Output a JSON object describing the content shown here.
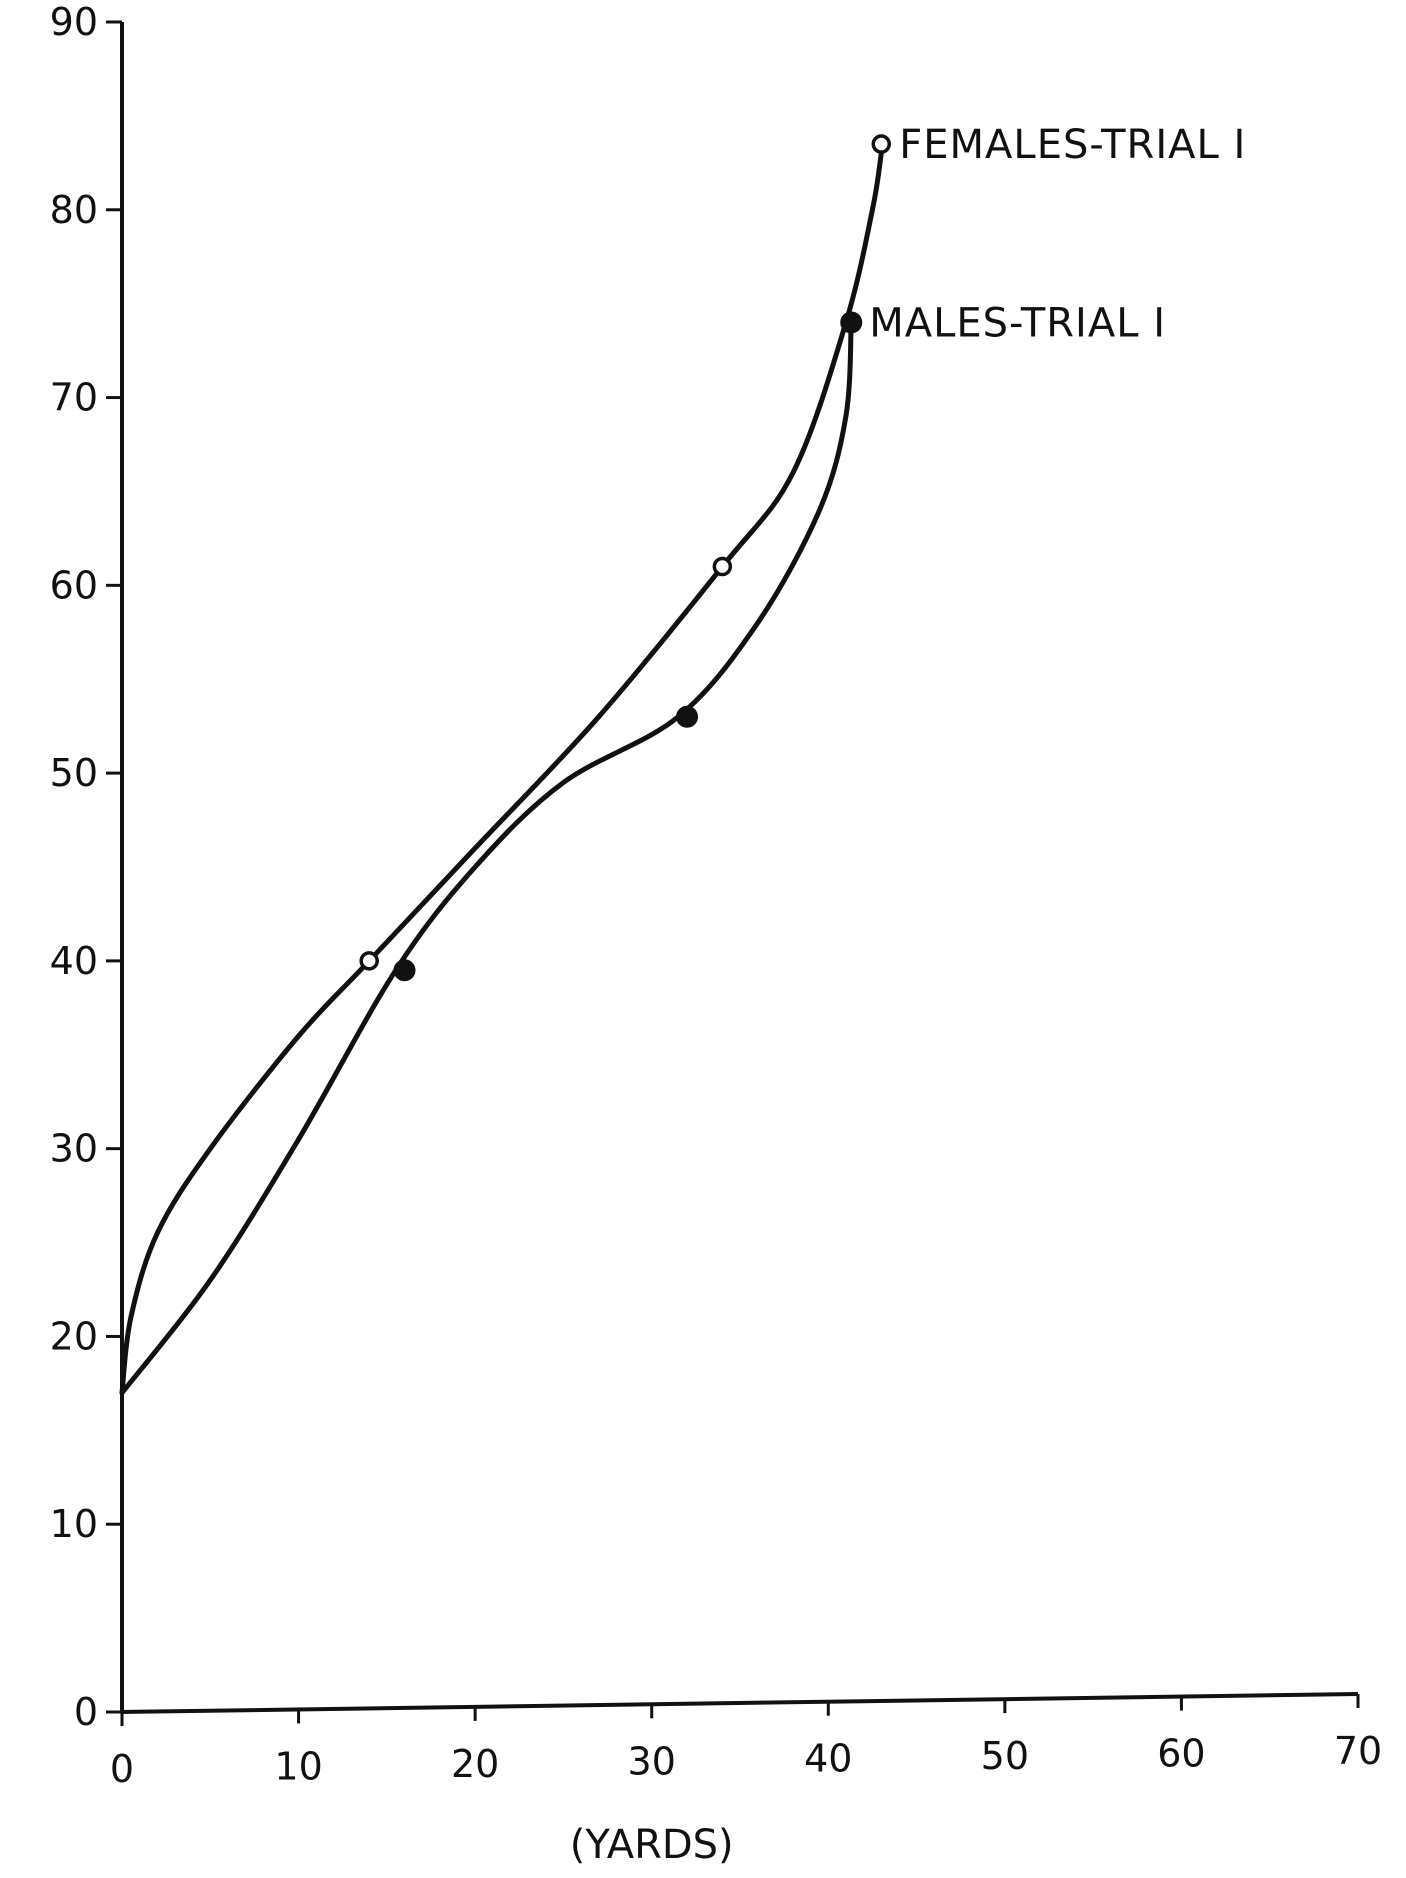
{
  "chart_data": {
    "type": "line",
    "title": "",
    "xlabel": "(YARDS)",
    "ylabel": "",
    "xlim": [
      0,
      70
    ],
    "ylim": [
      0,
      90
    ],
    "x_ticks": [
      0,
      10,
      20,
      30,
      40,
      50,
      60,
      70
    ],
    "y_ticks": [
      0,
      10,
      20,
      30,
      40,
      50,
      60,
      70,
      80,
      90
    ],
    "x_tick_labels": [
      "0",
      "10",
      "20",
      "30",
      "40",
      "50",
      "60",
      "70"
    ],
    "y_tick_labels": [
      "0",
      "10",
      "20",
      "30",
      "40",
      "50",
      "60",
      "70",
      "80",
      "90"
    ],
    "grid": false,
    "legend": "direct labels at curve ends",
    "series": [
      {
        "name": "FEMALES-TRIAL I",
        "marker": "open-circle",
        "curve": [
          [
            0,
            17
          ],
          [
            0.5,
            21
          ],
          [
            2,
            25.5
          ],
          [
            5,
            30
          ],
          [
            10,
            36
          ],
          [
            14,
            40
          ],
          [
            20,
            46
          ],
          [
            27,
            53
          ],
          [
            34,
            61
          ],
          [
            38,
            66
          ],
          [
            41,
            74
          ],
          [
            42.5,
            80
          ],
          [
            43,
            83
          ]
        ],
        "points": [
          {
            "x": 14,
            "y": 40
          },
          {
            "x": 34,
            "y": 61
          },
          {
            "x": 43,
            "y": 83.5
          }
        ]
      },
      {
        "name": "MALES-TRIAL I",
        "marker": "filled-circle",
        "curve": [
          [
            0,
            17
          ],
          [
            5,
            23
          ],
          [
            10,
            30.5
          ],
          [
            15.5,
            39.5
          ],
          [
            20,
            45
          ],
          [
            25,
            49.5
          ],
          [
            31.5,
            53
          ],
          [
            36,
            58
          ],
          [
            39.5,
            64
          ],
          [
            41,
            69
          ],
          [
            41.3,
            74
          ]
        ],
        "points": [
          {
            "x": 16,
            "y": 39.5
          },
          {
            "x": 32,
            "y": 53
          },
          {
            "x": 41.3,
            "y": 74
          }
        ]
      }
    ]
  }
}
